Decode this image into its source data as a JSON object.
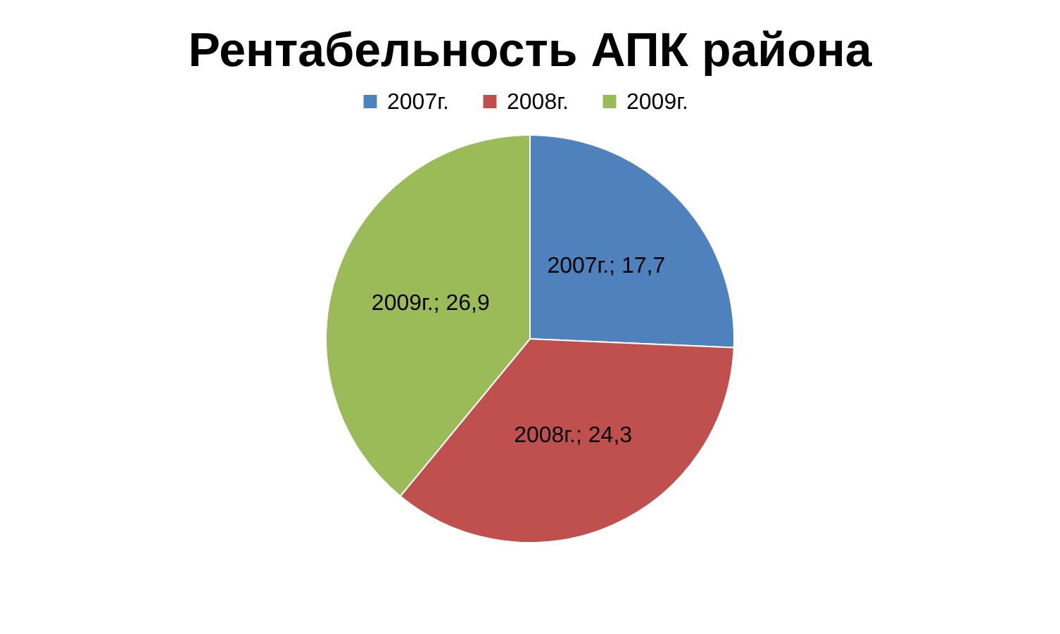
{
  "chart_data": {
    "type": "pie",
    "title": "Рентабельность  АПК  района",
    "categories": [
      "2007г.",
      "2008г.",
      "2009г."
    ],
    "values": [
      17.7,
      24.3,
      26.9
    ],
    "colors": [
      "#4f81bd",
      "#c0504d",
      "#9bbb59"
    ],
    "value_labels": [
      "2007г.; 17,7",
      "2008г.; 24,3",
      "2009г.; 26,9"
    ],
    "legend": "top"
  }
}
